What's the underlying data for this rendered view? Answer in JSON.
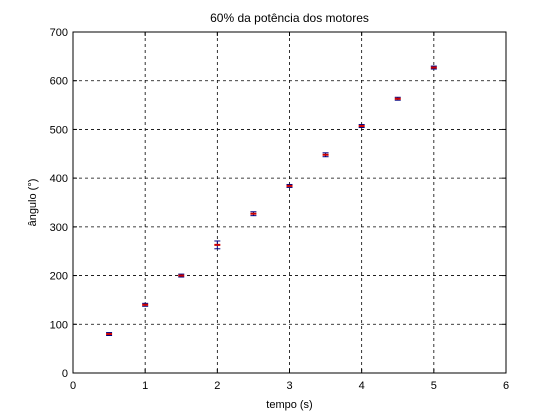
{
  "chart_data": {
    "type": "scatter",
    "title": "60% da potência dos motores",
    "xlabel": "tempo (s)",
    "ylabel": "ângulo (°)",
    "xlim": [
      0,
      6
    ],
    "ylim": [
      0,
      700
    ],
    "xticks": [
      0,
      1,
      2,
      3,
      4,
      5,
      6
    ],
    "yticks": [
      0,
      100,
      200,
      300,
      400,
      500,
      600,
      700
    ],
    "grid": true,
    "series": [
      {
        "marker_color": "#cc0000",
        "errorbar_color": "#000080",
        "points": [
          {
            "x": 0.5,
            "y": 80,
            "err": 3
          },
          {
            "x": 1.0,
            "y": 140,
            "err": 3
          },
          {
            "x": 1.5,
            "y": 200,
            "err": 3
          },
          {
            "x": 2.0,
            "y": 263,
            "err": 8
          },
          {
            "x": 2.5,
            "y": 327,
            "err": 4
          },
          {
            "x": 3.0,
            "y": 384,
            "err": 3
          },
          {
            "x": 3.5,
            "y": 448,
            "err": 4
          },
          {
            "x": 4.0,
            "y": 507,
            "err": 3
          },
          {
            "x": 4.5,
            "y": 563,
            "err": 3
          },
          {
            "x": 5.0,
            "y": 627,
            "err": 3
          }
        ]
      }
    ]
  }
}
